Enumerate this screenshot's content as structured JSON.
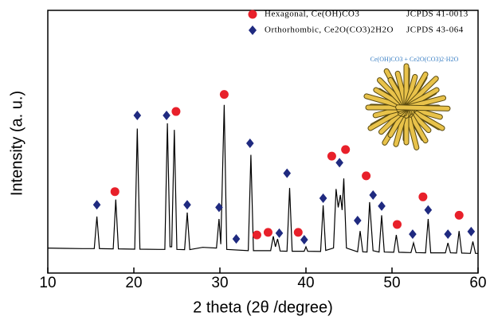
{
  "chart_data": {
    "type": "line",
    "xlabel": "2 theta (2θ /degree)",
    "ylabel": "Intensity (a. u.)",
    "xlim": [
      10,
      60
    ],
    "xticks": [
      10,
      20,
      30,
      40,
      50,
      60
    ],
    "ylim": [
      0,
      100
    ],
    "color": "#000000",
    "x": [
      10,
      12,
      14,
      15.4,
      15.7,
      16.0,
      17.6,
      17.9,
      18.2,
      20.1,
      20.4,
      20.7,
      23.0,
      23.6,
      23.9,
      24.2,
      24.4,
      24.7,
      25.0,
      25.9,
      26.2,
      26.5,
      28,
      29.6,
      29.9,
      30.1,
      30.5,
      30.8,
      33.3,
      33.6,
      33.9,
      35.9,
      36.2,
      36.45,
      36.7,
      37.0,
      37.8,
      38.1,
      38.4,
      39.8,
      40.0,
      40.2,
      41.7,
      42.0,
      42.3,
      43.2,
      43.5,
      43.75,
      44.0,
      44.2,
      44.4,
      44.7,
      46.0,
      46.3,
      46.6,
      47.1,
      47.4,
      47.8,
      48.5,
      48.8,
      49.1,
      50.2,
      50.5,
      50.8,
      52.2,
      52.5,
      52.8,
      53.9,
      54.2,
      54.5,
      56.2,
      56.5,
      56.8,
      57.5,
      57.8,
      58.1,
      59.1,
      59.4,
      59.7,
      60
    ],
    "values": [
      9.5,
      9.4,
      9.3,
      9.3,
      21.5,
      9.3,
      9.2,
      28,
      9.2,
      9.1,
      55,
      9.1,
      9.0,
      9.0,
      57,
      10,
      10,
      54.5,
      9.0,
      8.9,
      23,
      8.9,
      9.8,
      9.5,
      20.6,
      11,
      64,
      9.0,
      8.5,
      45,
      8.5,
      8.5,
      14,
      10,
      13,
      8.4,
      8.3,
      32.4,
      8.3,
      8.3,
      10,
      8.3,
      8.2,
      25.8,
      8.6,
      9.5,
      32,
      25,
      29.7,
      24,
      36,
      9.5,
      8.1,
      16,
      8.1,
      8.0,
      27,
      8.5,
      8.0,
      22,
      8.0,
      7.9,
      14.5,
      7.9,
      7.8,
      11.5,
      7.8,
      7.7,
      20.6,
      7.7,
      7.7,
      11.5,
      7.7,
      7.6,
      16,
      7.6,
      7.5,
      12,
      7.5,
      7.5
    ],
    "series": [
      {
        "name": "Hexagonal, Ce(OH)CO3",
        "reference": "JCPDS 41-0013",
        "color": "#e8202a",
        "marker": "circle",
        "x": [
          17.8,
          24.9,
          30.5,
          34.3,
          35.6,
          39.1,
          43.0,
          44.6,
          47.0,
          50.6,
          53.6,
          57.8
        ],
        "values": [
          31,
          61.5,
          68,
          14.5,
          15.5,
          15.5,
          44.5,
          47,
          37,
          18.5,
          29,
          22
        ]
      },
      {
        "name": "Orthorhombic, Ce2O(CO3)2H2O",
        "reference": "JCPDS 43-064",
        "color": "#1f2a80",
        "marker": "diamond",
        "x": [
          15.7,
          20.4,
          23.8,
          26.2,
          29.9,
          31.9,
          33.5,
          36.9,
          37.8,
          39.8,
          42.0,
          43.9,
          46.0,
          47.8,
          48.8,
          52.4,
          54.2,
          56.5,
          59.2
        ],
        "values": [
          26,
          60,
          60,
          26,
          25,
          13,
          49.4,
          15.2,
          38,
          12.7,
          28.5,
          42,
          20,
          29.7,
          25.5,
          14.8,
          24,
          14.8,
          15.8
        ]
      }
    ],
    "inset_label": "Ce(OH)CO3 + Ce2O(CO3)2·H2O"
  }
}
